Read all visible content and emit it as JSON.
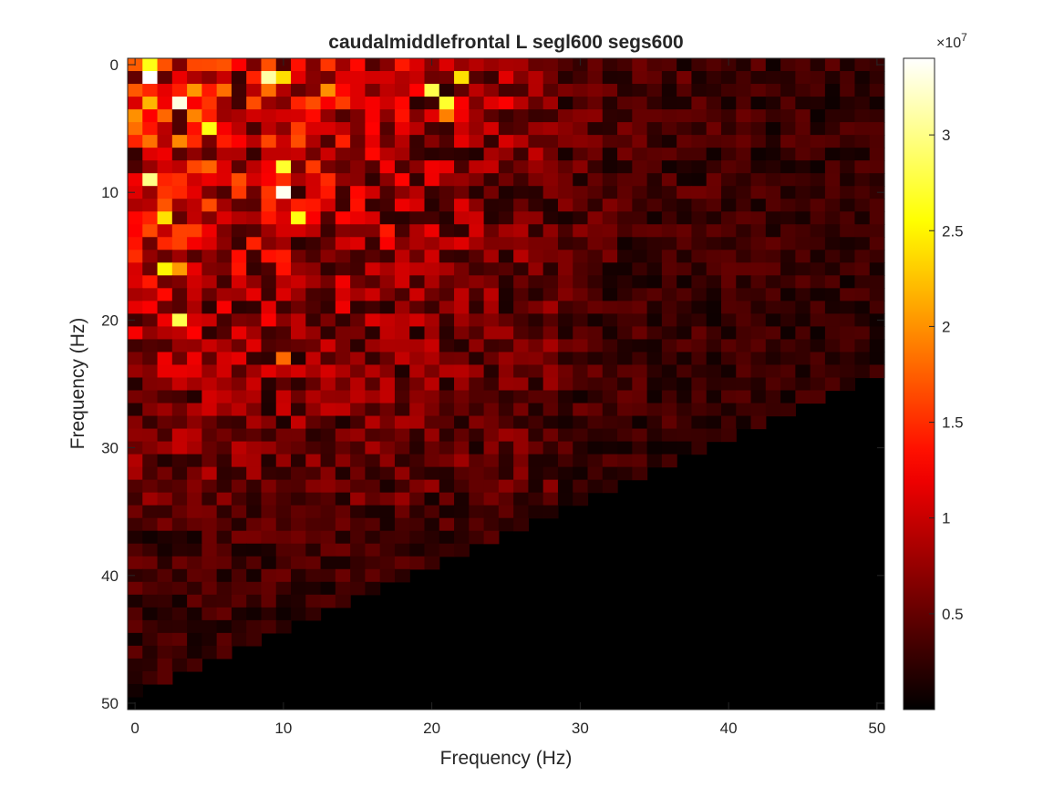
{
  "chart_data": {
    "type": "heatmap",
    "title": "caudalmiddlefrontal L segl600 segs600",
    "xlabel": "Frequency (Hz)",
    "ylabel": "Frequency (Hz)",
    "x_range": [
      0,
      50
    ],
    "y_range": [
      0,
      50
    ],
    "y_reversed": true,
    "x_ticks": [
      0,
      10,
      20,
      30,
      40,
      50
    ],
    "y_ticks": [
      0,
      10,
      20,
      30,
      40,
      50
    ],
    "x_tick_labels": [
      "0",
      "10",
      "20",
      "30",
      "40",
      "50"
    ],
    "y_tick_labels": [
      "0",
      "10",
      "20",
      "30",
      "40",
      "50"
    ],
    "grid": false,
    "colormap": "hot",
    "colorbar": {
      "range": [
        0,
        34000000
      ],
      "ticks": [
        5000000,
        10000000,
        15000000,
        20000000,
        25000000,
        30000000
      ],
      "tick_labels": [
        "0.5",
        "1",
        "1.5",
        "2",
        "2.5",
        "3"
      ],
      "exponent_label": "×10",
      "exponent_power": "7"
    },
    "data_description": "Frequency-frequency power map; values are high (up to ~3.4e7) at low frequencies (top-left), decreasing toward higher frequencies; bottom-right triangle below the anti-diagonal is zero.",
    "hotspots": [
      {
        "x": 1,
        "y": 1,
        "value": 34000000
      },
      {
        "x": 3,
        "y": 3,
        "value": 33000000
      },
      {
        "x": 10,
        "y": 10,
        "value": 33500000
      },
      {
        "x": 9,
        "y": 1,
        "value": 31000000
      },
      {
        "x": 1,
        "y": 9,
        "value": 30000000
      },
      {
        "x": 20,
        "y": 2,
        "value": 28000000
      },
      {
        "x": 21,
        "y": 3,
        "value": 27000000
      },
      {
        "x": 10,
        "y": 8,
        "value": 27000000
      },
      {
        "x": 11,
        "y": 12,
        "value": 26000000
      },
      {
        "x": 3,
        "y": 20,
        "value": 28000000
      },
      {
        "x": 2,
        "y": 16,
        "value": 25000000
      },
      {
        "x": 5,
        "y": 5,
        "value": 26000000
      },
      {
        "x": 2,
        "y": 12,
        "value": 24000000
      },
      {
        "x": 22,
        "y": 1,
        "value": 24000000
      }
    ]
  },
  "colors": {
    "background": "#ffffff",
    "axis": "#262626",
    "zero_region": "#000000"
  }
}
